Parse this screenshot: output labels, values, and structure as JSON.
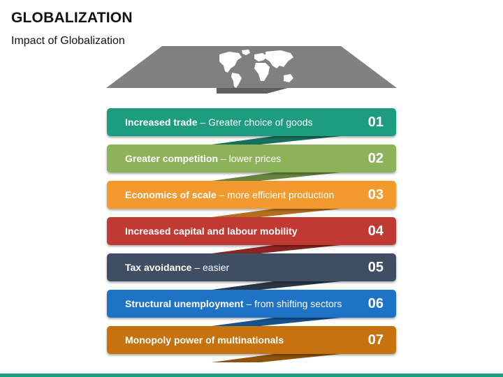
{
  "header": {
    "title": "GLOBALIZATION",
    "subtitle": "Impact of Globalization"
  },
  "roof": {
    "icon": "world-map-icon",
    "color": "#808080"
  },
  "items": [
    {
      "bold": "Increased trade",
      "rest": " – Greater choice of goods",
      "num": "01",
      "color": "#1E9C7F",
      "ribbon": "#16705B"
    },
    {
      "bold": "Greater competition",
      "rest": " – lower prices",
      "num": "02",
      "color": "#8CB359",
      "ribbon": "#66843F"
    },
    {
      "bold": "Economics of scale",
      "rest": " – more efficient production",
      "num": "03",
      "color": "#F29A2E",
      "ribbon": "#B46F1E"
    },
    {
      "bold": "Increased capital and labour mobility",
      "rest": "",
      "num": "04",
      "color": "#C23934",
      "ribbon": "#8A2522"
    },
    {
      "bold": "Tax avoidance",
      "rest": " – easier",
      "num": "05",
      "color": "#3F4E63",
      "ribbon": "#2A3545"
    },
    {
      "bold": "Structural unemployment",
      "rest": " – from shifting sectors",
      "num": "06",
      "color": "#1F73C7",
      "ribbon": "#15528F"
    },
    {
      "bold": "Monopoly power of multinationals",
      "rest": "",
      "num": "07",
      "color": "#C6730F",
      "ribbon": "#8E520A"
    }
  ],
  "footer": {
    "color": "#1E9C7F"
  }
}
